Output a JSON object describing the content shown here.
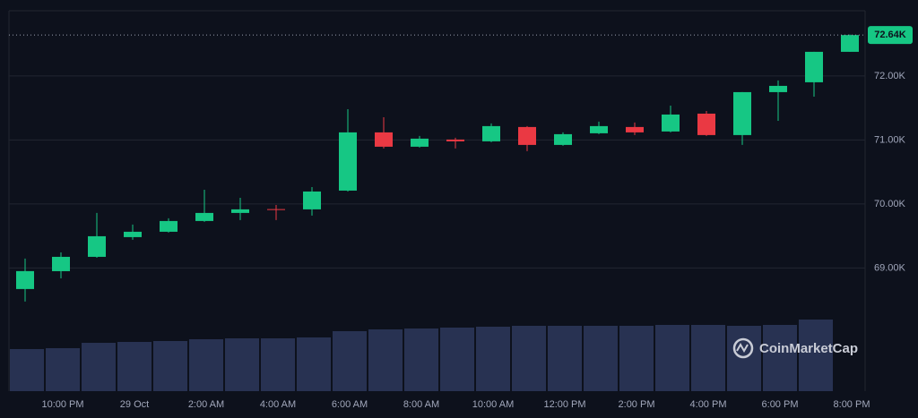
{
  "chart_data": {
    "type": "candlestick",
    "categories": [
      null,
      "10:00 PM",
      null,
      "29 Oct",
      null,
      "2:00 AM",
      null,
      "4:00 AM",
      null,
      "6:00 AM",
      null,
      "8:00 AM",
      null,
      "10:00 AM",
      null,
      "12:00 PM",
      null,
      "2:00 PM",
      null,
      "4:00 PM",
      null,
      "6:00 PM",
      null,
      "8:00 PM"
    ],
    "open": [
      68671,
      68950,
      69174,
      69482,
      69566,
      69734,
      69860,
      69920,
      69916,
      70209,
      71119,
      70895,
      71007,
      70979,
      71203,
      70923,
      71105,
      71203,
      71133,
      71412,
      71077,
      71748,
      71902,
      72378
    ],
    "high": [
      69147,
      69244,
      69860,
      69678,
      69776,
      70223,
      70097,
      69985,
      70265,
      71482,
      71356,
      71063,
      71035,
      71259,
      71217,
      71119,
      71287,
      71273,
      71538,
      71454,
      71748,
      71930,
      72378,
      72650
    ],
    "low": [
      68476,
      68838,
      69160,
      69440,
      69552,
      69720,
      69748,
      69748,
      69818,
      70195,
      70867,
      70881,
      70867,
      70965,
      70825,
      70909,
      71091,
      71077,
      71119,
      71063,
      70923,
      71300,
      71678,
      72378
    ],
    "close": [
      68951,
      69174,
      69496,
      69566,
      69734,
      69860,
      69916,
      69910,
      70195,
      71119,
      70895,
      71021,
      70979,
      71217,
      70923,
      71091,
      71217,
      71119,
      71398,
      71077,
      71748,
      71846,
      72378,
      72640
    ],
    "volume": [
      47,
      48,
      54,
      55,
      56,
      58,
      59,
      59,
      60,
      67,
      69,
      70,
      71,
      72,
      73,
      73,
      73,
      73,
      74,
      74,
      73,
      74,
      80,
      null
    ],
    "up_color": "#16c784",
    "down_color": "#ea3943",
    "volume_color": "#283252",
    "ylim": [
      67075,
      73020
    ],
    "yticks": [
      {
        "value": 69000,
        "label": "69.00K"
      },
      {
        "value": 70000,
        "label": "70.00K"
      },
      {
        "value": 71000,
        "label": "71.00K"
      },
      {
        "value": 72000,
        "label": "72.00K"
      }
    ],
    "grid": true,
    "last_price": {
      "value": 72640,
      "label": "72.64K"
    },
    "watermark": "CoinMarketCap"
  }
}
